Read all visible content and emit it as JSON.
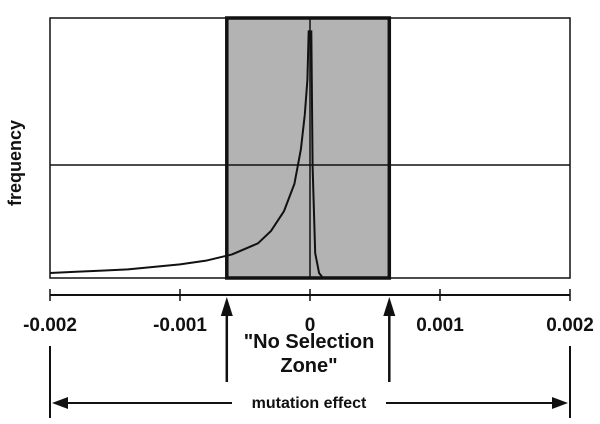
{
  "chart_data": {
    "type": "line",
    "title": "",
    "ylabel": "frequency",
    "xlabel": "mutation effect",
    "xlim": [
      -0.002,
      0.002
    ],
    "xticks": [
      -0.002,
      -0.001,
      0,
      0.001,
      0.002
    ],
    "xtick_labels": [
      "-0.002",
      "-0.001",
      "0",
      "0.001",
      "0.002"
    ],
    "y_ticks_shown": false,
    "grid": "single horizontal line at mid-height",
    "no_selection_zone": {
      "label_line1": "\"No Selection",
      "label_line2": "Zone\"",
      "range": [
        -0.00064,
        0.00061
      ],
      "fill_color": "#b3b3b3"
    },
    "series": [
      {
        "x": [
          -0.002,
          -0.0018,
          -0.0016,
          -0.0014,
          -0.0012,
          -0.001,
          -0.0008,
          -0.0006,
          -0.0004,
          -0.0003,
          -0.0002,
          -0.00012,
          -7e-05,
          -4e-05,
          -2e-05,
          -1e-05
        ],
        "y": [
          0.02,
          0.025,
          0.03,
          0.035,
          0.045,
          0.055,
          0.07,
          0.095,
          0.14,
          0.19,
          0.27,
          0.38,
          0.52,
          0.66,
          0.8,
          1.0
        ],
        "color": "#111111"
      },
      {
        "x": [
          1e-05,
          2e-05,
          4e-05,
          7e-05,
          0.0001
        ],
        "y": [
          1.0,
          0.45,
          0.1,
          0.02,
          0.0
        ],
        "color": "#111111"
      }
    ],
    "ylim": [
      0,
      1.05
    ]
  }
}
